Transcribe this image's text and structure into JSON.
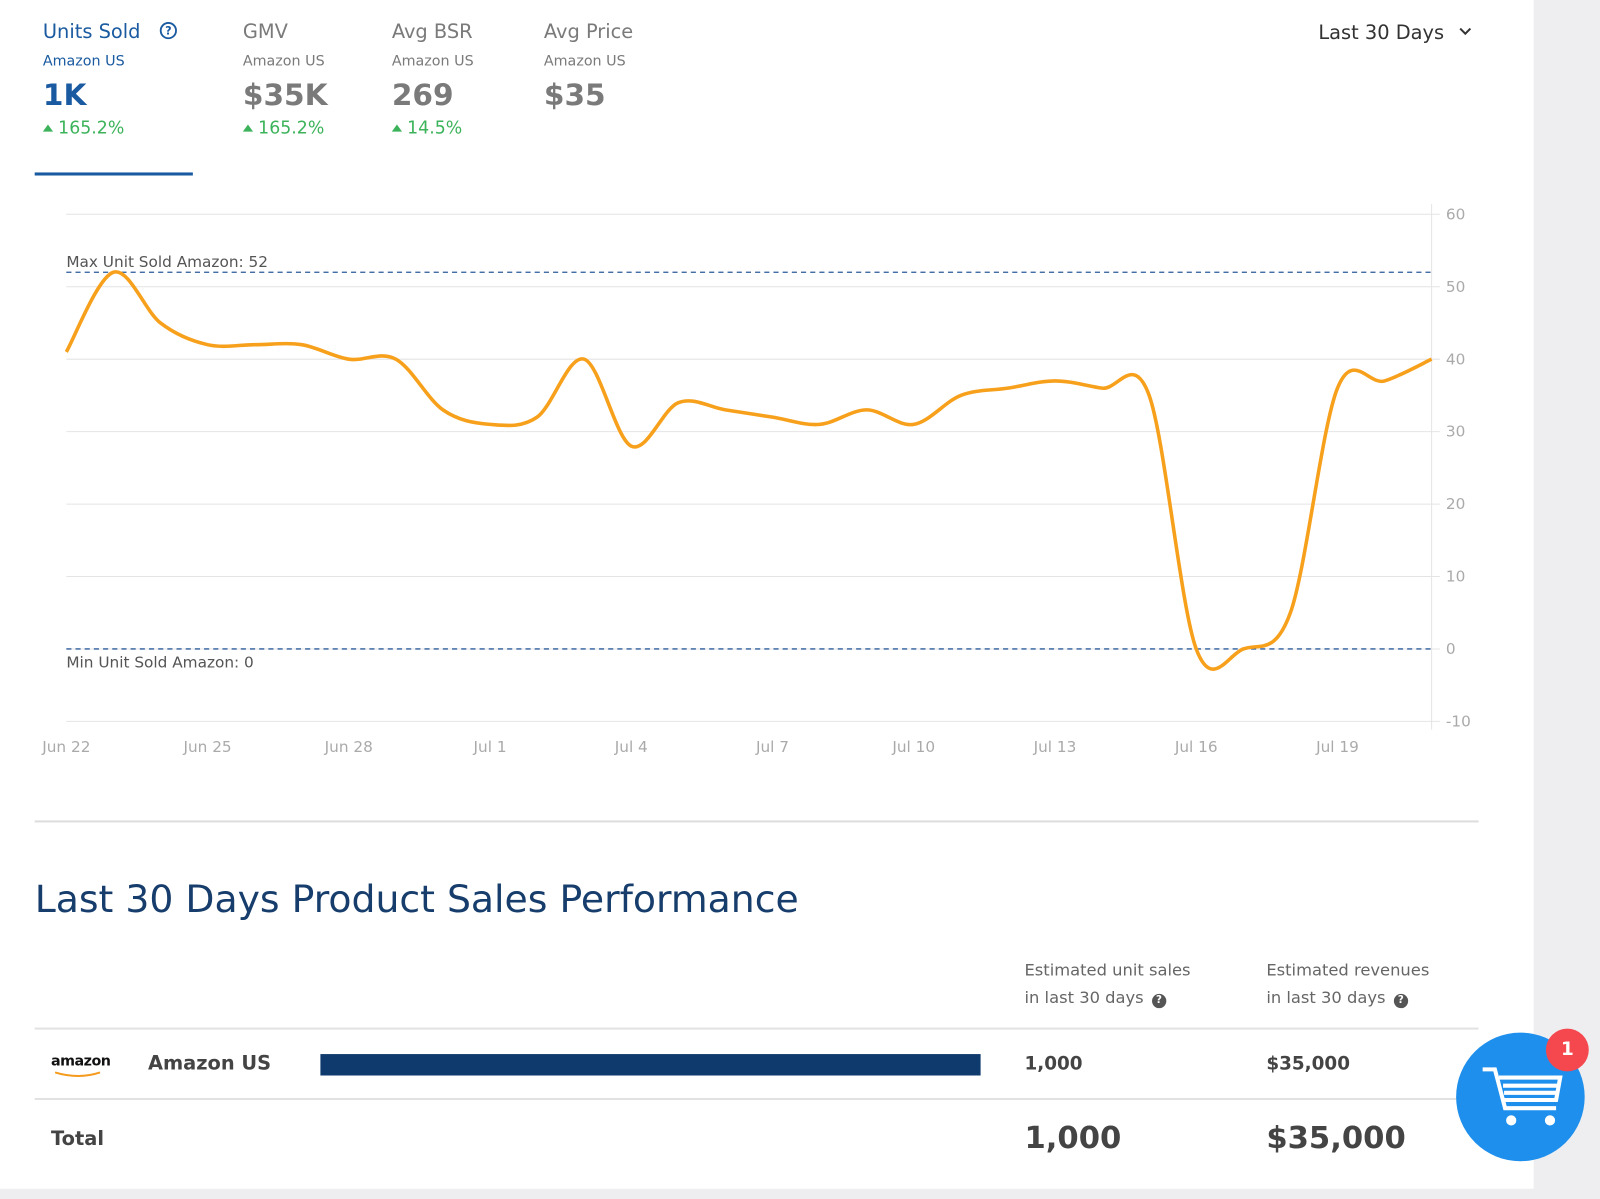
{
  "metrics": [
    {
      "name": "Units Sold",
      "marketplace": "Amazon US",
      "value": "1K",
      "change": "165.2%"
    },
    {
      "name": "GMV",
      "marketplace": "Amazon US",
      "value": "$35K",
      "change": "165.2%"
    },
    {
      "name": "Avg BSR",
      "marketplace": "Amazon US",
      "value": "269",
      "change": "14.5%"
    },
    {
      "name": "Avg Price",
      "marketplace": "Amazon US",
      "value": "$35"
    }
  ],
  "period": "Last 30 Days",
  "chart_data": {
    "type": "line",
    "color": "#f7a01c",
    "categories": [
      "Jun 22",
      null,
      null,
      "Jun 25",
      null,
      null,
      "Jun 28",
      null,
      null,
      "Jul 1",
      null,
      null,
      "Jul 4",
      null,
      null,
      "Jul 7",
      null,
      null,
      "Jul 10",
      null,
      null,
      "Jul 13",
      null,
      null,
      "Jul 16",
      null,
      null,
      "Jul 19",
      null,
      null
    ],
    "values": [
      41,
      52,
      45,
      42,
      42,
      42,
      40,
      40,
      33,
      31,
      32,
      40,
      28,
      34,
      33,
      32,
      31,
      33,
      31,
      35,
      36,
      37,
      36,
      35,
      0,
      0,
      5,
      36,
      37,
      40
    ],
    "ylim": [
      -10,
      60
    ],
    "yticks": [
      -10,
      0,
      10,
      20,
      30,
      40,
      50,
      60
    ],
    "grid": true,
    "reference_lines": [
      {
        "label": "Max Unit Sold Amazon: 52",
        "value": 52
      },
      {
        "label": "Min Unit Sold Amazon: 0",
        "value": 0
      }
    ]
  },
  "section_title": "Last 30 Days Product Sales Performance",
  "table": {
    "headers": [
      [
        "Estimated unit sales",
        "in last 30 days"
      ],
      [
        "Estimated revenues",
        "in last 30 days"
      ]
    ],
    "rows": [
      {
        "logo": "amazon",
        "name": "Amazon US",
        "units": "1,000",
        "revenue": "$35,000"
      }
    ],
    "total": {
      "label": "Total",
      "units": "1,000",
      "revenue": "$35,000"
    }
  },
  "cart_badge": "1"
}
